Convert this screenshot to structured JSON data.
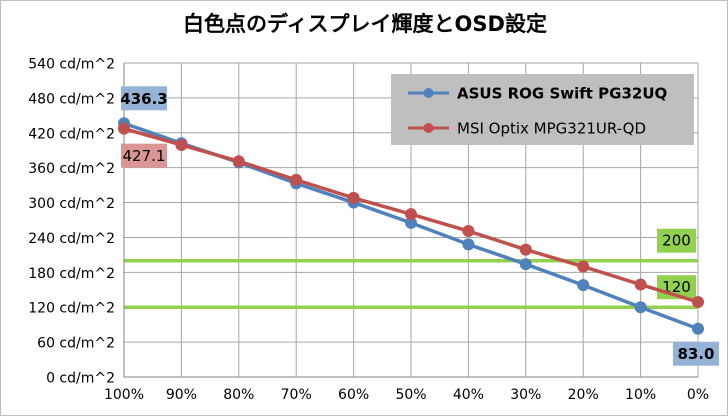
{
  "chart_data": {
    "type": "line",
    "title": "白色点のディスプレイ輝度とOSD設定",
    "xlabel": "",
    "ylabel": "",
    "x": [
      "100%",
      "90%",
      "80%",
      "70%",
      "60%",
      "50%",
      "40%",
      "30%",
      "20%",
      "10%",
      "0%"
    ],
    "ylim": [
      0,
      540
    ],
    "y_ticks": [
      0,
      60,
      120,
      180,
      240,
      300,
      360,
      420,
      480,
      540
    ],
    "y_tick_labels": [
      "0 cd/m^2",
      "60 cd/m^2",
      "120 cd/m^2",
      "180 cd/m^2",
      "240 cd/m^2",
      "300 cd/m^2",
      "360 cd/m^2",
      "420 cd/m^2",
      "480 cd/m^2",
      "540 cd/m^2"
    ],
    "grid": true,
    "legend_position": "top-right",
    "series": [
      {
        "name": "ASUS ROG Swift PG32UQ",
        "color": "#4f81bd",
        "values": [
          436.3,
          402,
          369,
          333,
          300,
          265,
          228,
          194,
          158,
          120,
          83.0
        ],
        "label_first": "436.3",
        "label_last": "83.0"
      },
      {
        "name": "MSI Optix MPG321UR-QD",
        "color": "#c0504d",
        "values": [
          427.1,
          399,
          371,
          339,
          308,
          280,
          251,
          219,
          190,
          159,
          129
        ],
        "label_first": "427.1"
      }
    ],
    "reference_lines": [
      {
        "value": 200,
        "label": "200",
        "color": "#92d050"
      },
      {
        "value": 120,
        "label": "120",
        "color": "#92d050"
      }
    ]
  }
}
